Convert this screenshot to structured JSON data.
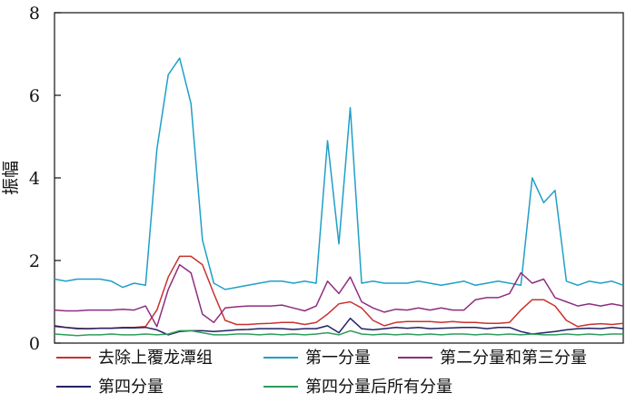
{
  "chart_data": {
    "type": "line",
    "title": "",
    "xlabel": "",
    "ylabel": "振幅",
    "ylim": [
      0,
      8
    ],
    "xlim": [
      0,
      100
    ],
    "yticks": [
      0,
      2,
      4,
      6,
      8
    ],
    "ytick_labels": [
      "0",
      "2",
      "4",
      "6",
      "8"
    ],
    "grid": false,
    "legend_placement": "bottom",
    "x": [
      0,
      2,
      4,
      6,
      8,
      10,
      12,
      14,
      16,
      18,
      20,
      22,
      24,
      26,
      28,
      30,
      32,
      34,
      36,
      38,
      40,
      42,
      44,
      46,
      48,
      50,
      52,
      54,
      56,
      58,
      60,
      62,
      64,
      66,
      68,
      70,
      72,
      74,
      76,
      78,
      80,
      82,
      84,
      86,
      88,
      90,
      92,
      94,
      96,
      98,
      100
    ],
    "series": [
      {
        "name": "去除上覆龙潭组",
        "color": "#c8322f",
        "values": [
          0.4,
          0.38,
          0.36,
          0.35,
          0.36,
          0.36,
          0.38,
          0.38,
          0.4,
          0.8,
          1.6,
          2.1,
          2.1,
          1.9,
          1.2,
          0.55,
          0.45,
          0.45,
          0.47,
          0.48,
          0.5,
          0.5,
          0.45,
          0.5,
          0.7,
          0.95,
          1.0,
          0.85,
          0.55,
          0.42,
          0.5,
          0.52,
          0.52,
          0.52,
          0.5,
          0.52,
          0.5,
          0.5,
          0.48,
          0.48,
          0.5,
          0.8,
          1.05,
          1.05,
          0.9,
          0.55,
          0.4,
          0.45,
          0.47,
          0.45,
          0.48
        ]
      },
      {
        "name": "第一分量",
        "color": "#1f9fc8",
        "values": [
          1.55,
          1.5,
          1.55,
          1.55,
          1.55,
          1.5,
          1.35,
          1.45,
          1.4,
          4.7,
          6.5,
          6.9,
          5.8,
          2.5,
          1.45,
          1.3,
          1.35,
          1.4,
          1.45,
          1.5,
          1.5,
          1.45,
          1.5,
          1.45,
          4.9,
          2.4,
          5.7,
          1.45,
          1.5,
          1.45,
          1.45,
          1.45,
          1.5,
          1.45,
          1.4,
          1.45,
          1.5,
          1.4,
          1.45,
          1.5,
          1.45,
          1.4,
          4.0,
          3.4,
          3.7,
          1.5,
          1.4,
          1.5,
          1.45,
          1.5,
          1.4
        ]
      },
      {
        "name": "第二分量和第三分量",
        "color": "#8e2d80",
        "values": [
          0.8,
          0.78,
          0.78,
          0.8,
          0.8,
          0.8,
          0.82,
          0.8,
          0.9,
          0.4,
          1.3,
          1.9,
          1.7,
          0.7,
          0.5,
          0.85,
          0.88,
          0.9,
          0.9,
          0.9,
          0.92,
          0.85,
          0.78,
          0.9,
          1.5,
          1.2,
          1.6,
          1.0,
          0.85,
          0.75,
          0.82,
          0.8,
          0.85,
          0.8,
          0.85,
          0.8,
          0.8,
          1.05,
          1.1,
          1.1,
          1.2,
          1.7,
          1.45,
          1.55,
          1.1,
          1.0,
          0.9,
          0.95,
          0.9,
          0.95,
          0.9
        ]
      },
      {
        "name": "第四分量",
        "color": "#222266",
        "values": [
          0.42,
          0.38,
          0.35,
          0.35,
          0.36,
          0.36,
          0.37,
          0.37,
          0.38,
          0.32,
          0.2,
          0.28,
          0.3,
          0.3,
          0.28,
          0.3,
          0.32,
          0.33,
          0.35,
          0.35,
          0.35,
          0.33,
          0.35,
          0.35,
          0.42,
          0.25,
          0.6,
          0.35,
          0.32,
          0.35,
          0.38,
          0.36,
          0.38,
          0.35,
          0.36,
          0.37,
          0.38,
          0.38,
          0.35,
          0.38,
          0.38,
          0.28,
          0.22,
          0.25,
          0.28,
          0.32,
          0.35,
          0.36,
          0.35,
          0.38,
          0.35
        ]
      },
      {
        "name": "第四分量后所有分量",
        "color": "#2e9c5c",
        "values": [
          0.22,
          0.2,
          0.18,
          0.2,
          0.2,
          0.22,
          0.2,
          0.2,
          0.22,
          0.2,
          0.22,
          0.3,
          0.3,
          0.25,
          0.2,
          0.2,
          0.22,
          0.22,
          0.2,
          0.22,
          0.2,
          0.22,
          0.2,
          0.22,
          0.25,
          0.2,
          0.3,
          0.22,
          0.2,
          0.22,
          0.2,
          0.22,
          0.2,
          0.22,
          0.2,
          0.22,
          0.22,
          0.2,
          0.22,
          0.2,
          0.22,
          0.2,
          0.22,
          0.2,
          0.2,
          0.22,
          0.2,
          0.22,
          0.2,
          0.22,
          0.22
        ]
      }
    ]
  }
}
